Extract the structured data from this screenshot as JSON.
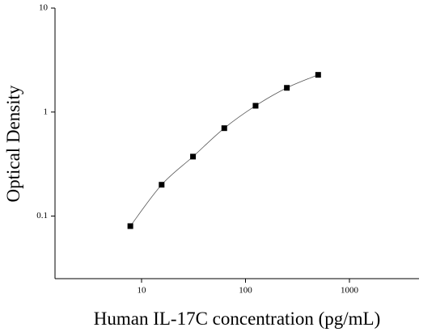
{
  "chart_data": {
    "type": "scatter",
    "x_label": "Human IL-17C concentration (pg/mL)",
    "y_label": "Optical Density",
    "xscale": "log",
    "yscale": "log",
    "xlim": [
      1.47,
      4670
    ],
    "ylim": [
      0.025,
      10
    ],
    "xticks": [
      10,
      100,
      1000
    ],
    "yticks": [
      0.1,
      1,
      10
    ],
    "series": [
      {
        "color": "#000000",
        "line": true,
        "x": [
          7.8,
          15.6,
          31.25,
          62.5,
          125,
          250,
          500
        ],
        "values": [
          0.08,
          0.2,
          0.373,
          0.7,
          1.15,
          1.71,
          2.28
        ]
      }
    ]
  }
}
